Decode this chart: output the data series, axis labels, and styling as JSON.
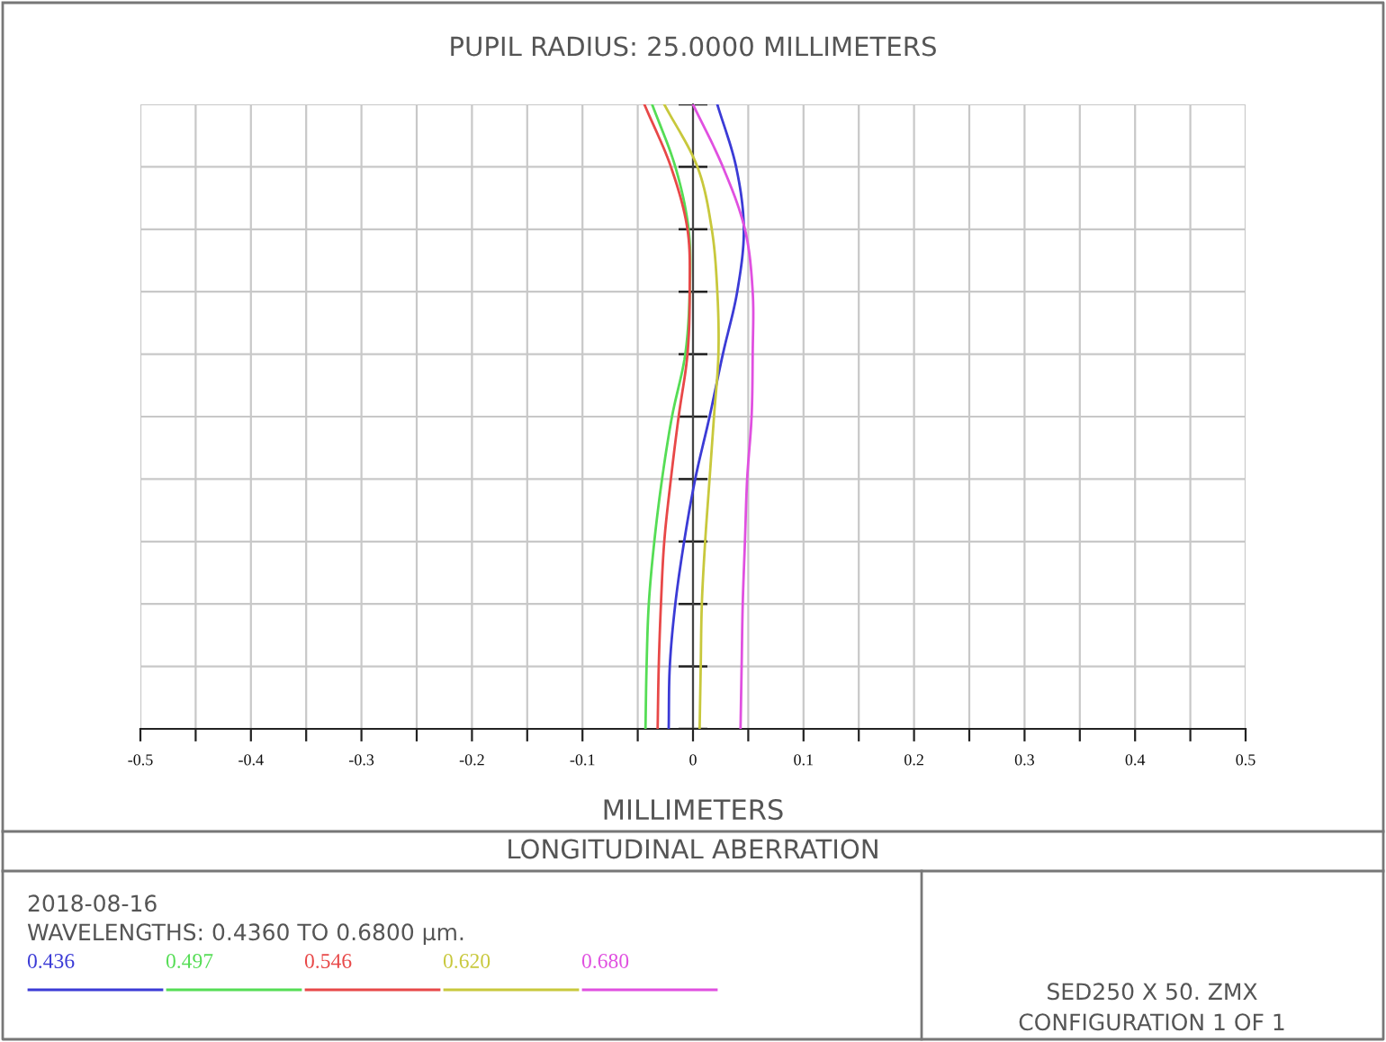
{
  "chart_data": {
    "type": "line",
    "orientation": "horizontal",
    "title": "LONGITUDINAL ABERRATION",
    "subtitle": "PUPIL RADIUS: 25.0000 MILLIMETERS",
    "xlabel": "MILLIMETERS",
    "annotations": [
      "2018-08-16",
      "WAVELENGTHS: 0.4360 TO 0.6800 µm.",
      "SED250 X 50. ZMX",
      "CONFIGURATION 1 OF 1"
    ],
    "categories": [
      null,
      null,
      null,
      null,
      null,
      null,
      null,
      null,
      null,
      null,
      null
    ],
    "series": [
      {
        "name": "0.436",
        "color": "#3b3bd6",
        "values": [
          0.022,
          0.039,
          0.046,
          0.04,
          0.027,
          0.015,
          0.002,
          -0.008,
          -0.016,
          -0.021,
          -0.022
        ]
      },
      {
        "name": "0.497",
        "color": "#55dd55",
        "values": [
          -0.037,
          -0.016,
          -0.004,
          -0.003,
          -0.007,
          -0.019,
          -0.028,
          -0.035,
          -0.04,
          -0.042,
          -0.043
        ]
      },
      {
        "name": "0.546",
        "color": "#e84848",
        "values": [
          -0.044,
          -0.02,
          -0.005,
          -0.003,
          -0.005,
          -0.013,
          -0.02,
          -0.026,
          -0.029,
          -0.031,
          -0.032
        ]
      },
      {
        "name": "0.620",
        "color": "#c8c83c",
        "values": [
          -0.026,
          0.004,
          0.017,
          0.022,
          0.023,
          0.019,
          0.015,
          0.011,
          0.008,
          0.007,
          0.006
        ]
      },
      {
        "name": "0.680",
        "color": "#e050e0",
        "values": [
          0.0,
          0.027,
          0.047,
          0.054,
          0.054,
          0.053,
          0.049,
          0.047,
          0.045,
          0.044,
          0.043
        ]
      }
    ],
    "xlim": [
      -0.5,
      0.5
    ],
    "xticks": [
      -0.5,
      {
        "value": -0.45,
        "label": null
      },
      -0.4,
      {
        "value": -0.35,
        "label": null
      },
      -0.3,
      {
        "value": -0.25,
        "label": null
      },
      -0.2,
      {
        "value": -0.15,
        "label": null
      },
      -0.1,
      {
        "value": -0.05,
        "label": null
      },
      0,
      {
        "value": 0.05,
        "label": null
      },
      0.1,
      {
        "value": 0.15,
        "label": null
      },
      0.2,
      {
        "value": 0.25,
        "label": null
      },
      0.3,
      {
        "value": 0.35,
        "label": null
      },
      0.4,
      {
        "value": 0.45,
        "label": null
      },
      0.5
    ],
    "grid": true,
    "legend": "bottom",
    "tick_labels": "x"
  }
}
